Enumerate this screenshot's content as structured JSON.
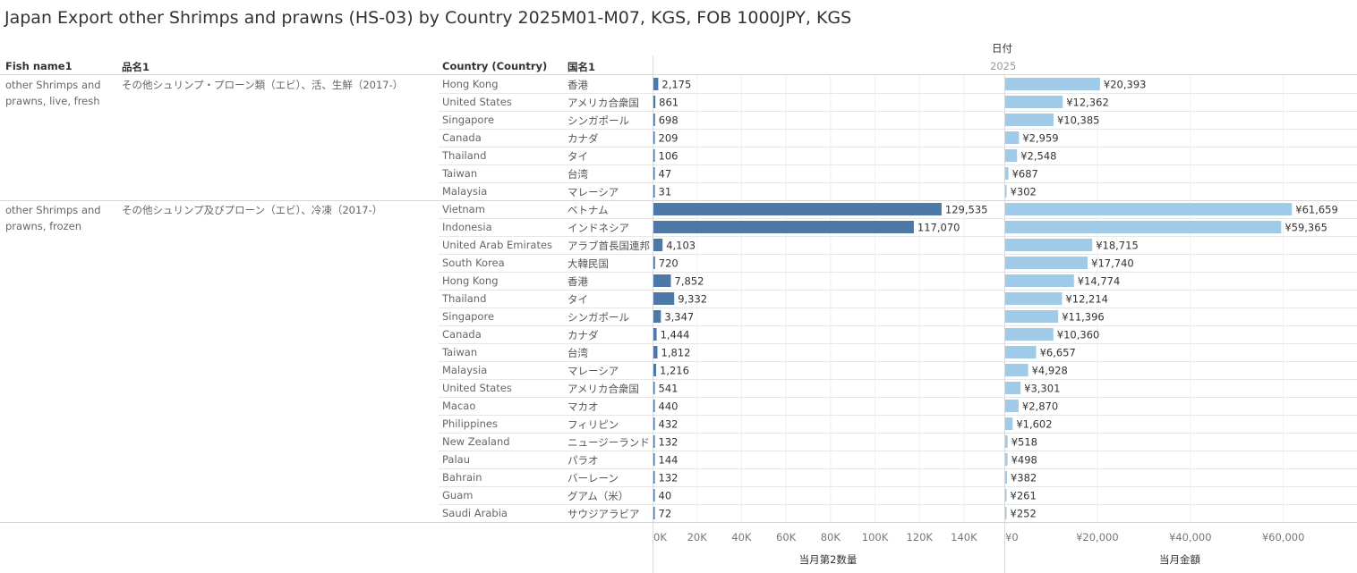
{
  "title": "Japan Export other Shrimps and prawns (HS-03) by Country 2025M01-M07, KGS, FOB 1000JPY, KGS",
  "headers": {
    "fish_name": "Fish name1",
    "hinmei": "品名1",
    "country": "Country (Country)",
    "kokumei": "国名1",
    "date_label": "日付",
    "year": "2025"
  },
  "colors": {
    "qty_bar": "#4e79a7",
    "amount_bar": "#a0cbe8"
  },
  "groups": [
    {
      "fish_name": "other Shrimps and prawns, live, fresh",
      "hinmei": "その他シュリンプ・プローン類（エビ）、活、生鮮（2017-）",
      "rows": [
        {
          "country": "Hong Kong",
          "jp": "香港",
          "qty": 2175,
          "qty_label": "2,175",
          "amount": 20393,
          "amount_label": "¥20,393"
        },
        {
          "country": "United States",
          "jp": "アメリカ合衆国",
          "qty": 861,
          "qty_label": "861",
          "amount": 12362,
          "amount_label": "¥12,362"
        },
        {
          "country": "Singapore",
          "jp": "シンガポール",
          "qty": 698,
          "qty_label": "698",
          "amount": 10385,
          "amount_label": "¥10,385"
        },
        {
          "country": "Canada",
          "jp": "カナダ",
          "qty": 209,
          "qty_label": "209",
          "amount": 2959,
          "amount_label": "¥2,959"
        },
        {
          "country": "Thailand",
          "jp": "タイ",
          "qty": 106,
          "qty_label": "106",
          "amount": 2548,
          "amount_label": "¥2,548"
        },
        {
          "country": "Taiwan",
          "jp": "台湾",
          "qty": 47,
          "qty_label": "47",
          "amount": 687,
          "amount_label": "¥687"
        },
        {
          "country": "Malaysia",
          "jp": "マレーシア",
          "qty": 31,
          "qty_label": "31",
          "amount": 302,
          "amount_label": "¥302"
        }
      ]
    },
    {
      "fish_name": "other Shrimps and prawns, frozen",
      "hinmei": "その他シュリンプ及びプローン（エビ）、冷凍（2017-）",
      "rows": [
        {
          "country": "Vietnam",
          "jp": "ベトナム",
          "qty": 129535,
          "qty_label": "129,535",
          "amount": 61659,
          "amount_label": "¥61,659"
        },
        {
          "country": "Indonesia",
          "jp": "インドネシア",
          "qty": 117070,
          "qty_label": "117,070",
          "amount": 59365,
          "amount_label": "¥59,365"
        },
        {
          "country": "United Arab Emirates",
          "jp": "アラブ首長国連邦",
          "qty": 4103,
          "qty_label": "4,103",
          "amount": 18715,
          "amount_label": "¥18,715"
        },
        {
          "country": "South Korea",
          "jp": "大韓民国",
          "qty": 720,
          "qty_label": "720",
          "amount": 17740,
          "amount_label": "¥17,740"
        },
        {
          "country": "Hong Kong",
          "jp": "香港",
          "qty": 7852,
          "qty_label": "7,852",
          "amount": 14774,
          "amount_label": "¥14,774"
        },
        {
          "country": "Thailand",
          "jp": "タイ",
          "qty": 9332,
          "qty_label": "9,332",
          "amount": 12214,
          "amount_label": "¥12,214"
        },
        {
          "country": "Singapore",
          "jp": "シンガポール",
          "qty": 3347,
          "qty_label": "3,347",
          "amount": 11396,
          "amount_label": "¥11,396"
        },
        {
          "country": "Canada",
          "jp": "カナダ",
          "qty": 1444,
          "qty_label": "1,444",
          "amount": 10360,
          "amount_label": "¥10,360"
        },
        {
          "country": "Taiwan",
          "jp": "台湾",
          "qty": 1812,
          "qty_label": "1,812",
          "amount": 6657,
          "amount_label": "¥6,657"
        },
        {
          "country": "Malaysia",
          "jp": "マレーシア",
          "qty": 1216,
          "qty_label": "1,216",
          "amount": 4928,
          "amount_label": "¥4,928"
        },
        {
          "country": "United States",
          "jp": "アメリカ合衆国",
          "qty": 541,
          "qty_label": "541",
          "amount": 3301,
          "amount_label": "¥3,301"
        },
        {
          "country": "Macao",
          "jp": "マカオ",
          "qty": 440,
          "qty_label": "440",
          "amount": 2870,
          "amount_label": "¥2,870"
        },
        {
          "country": "Philippines",
          "jp": "フィリピン",
          "qty": 432,
          "qty_label": "432",
          "amount": 1602,
          "amount_label": "¥1,602"
        },
        {
          "country": "New Zealand",
          "jp": "ニュージーランド",
          "qty": 132,
          "qty_label": "132",
          "amount": 518,
          "amount_label": "¥518"
        },
        {
          "country": "Palau",
          "jp": "パラオ",
          "qty": 144,
          "qty_label": "144",
          "amount": 498,
          "amount_label": "¥498"
        },
        {
          "country": "Bahrain",
          "jp": "バーレーン",
          "qty": 132,
          "qty_label": "132",
          "amount": 382,
          "amount_label": "¥382"
        },
        {
          "country": "Guam",
          "jp": "グアム（米）",
          "qty": 40,
          "qty_label": "40",
          "amount": 261,
          "amount_label": "¥261"
        },
        {
          "country": "Saudi Arabia",
          "jp": "サウジアラビア",
          "qty": 72,
          "qty_label": "72",
          "amount": 252,
          "amount_label": "¥252"
        }
      ]
    }
  ],
  "chart_data": [
    {
      "type": "bar",
      "orientation": "horizontal",
      "xlabel": "当月第2数量",
      "xlim": [
        0,
        158000
      ],
      "ticks": [
        0,
        20000,
        40000,
        60000,
        80000,
        100000,
        120000,
        140000
      ],
      "tick_labels": [
        "0K",
        "20K",
        "40K",
        "60K",
        "80K",
        "100K",
        "120K",
        "140K"
      ]
    },
    {
      "type": "bar",
      "orientation": "horizontal",
      "xlabel": "当月金額",
      "xlim": [
        0,
        75000
      ],
      "ticks": [
        0,
        20000,
        40000,
        60000
      ],
      "tick_labels": [
        "¥0",
        "¥20,000",
        "¥40,000",
        "¥60,000"
      ]
    }
  ]
}
